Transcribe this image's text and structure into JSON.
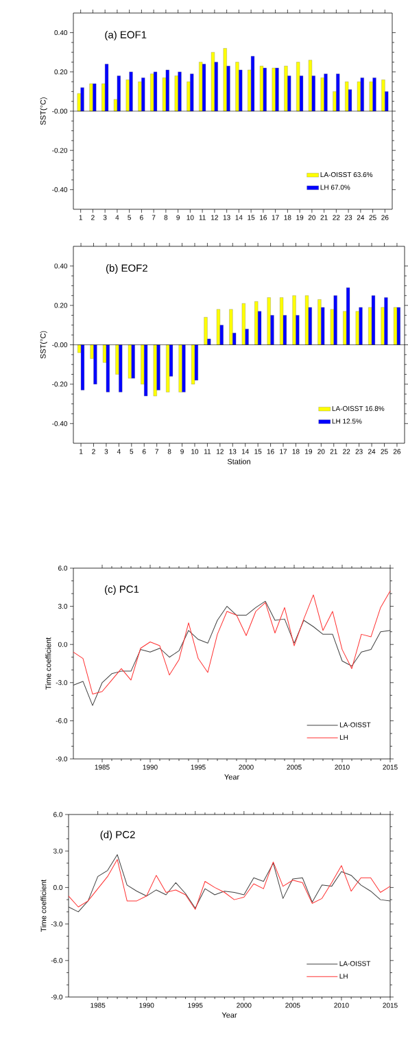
{
  "chart_data": [
    {
      "type": "bar",
      "title": "(a) EOF1",
      "ylabel": "SST(°C)",
      "categories": [
        "1",
        "2",
        "3",
        "4",
        "5",
        "6",
        "7",
        "8",
        "9",
        "10",
        "11",
        "12",
        "13",
        "14",
        "15",
        "16",
        "17",
        "18",
        "19",
        "20",
        "21",
        "22",
        "23",
        "24",
        "25",
        "26"
      ],
      "series": [
        {
          "name": "LA-OISST 63.6%",
          "color": "#ffff00",
          "values": [
            0.09,
            0.14,
            0.14,
            0.06,
            0.16,
            0.15,
            0.19,
            0.17,
            0.18,
            0.15,
            0.25,
            0.3,
            0.32,
            0.25,
            0.21,
            0.23,
            0.22,
            0.23,
            0.25,
            0.26,
            0.17,
            0.1,
            0.15,
            0.15,
            0.15,
            0.16
          ]
        },
        {
          "name": "LH 67.0%",
          "color": "#0000ff",
          "values": [
            0.12,
            0.14,
            0.24,
            0.18,
            0.2,
            0.17,
            0.2,
            0.21,
            0.2,
            0.19,
            0.24,
            0.25,
            0.23,
            0.21,
            0.28,
            0.22,
            0.22,
            0.18,
            0.18,
            0.18,
            0.19,
            0.19,
            0.11,
            0.17,
            0.17,
            0.1
          ]
        }
      ],
      "ylim": [
        -0.5,
        0.5
      ],
      "yticks": [
        {
          "value": 0.4,
          "label": "0.40"
        },
        {
          "value": 0.2,
          "label": "0.20"
        },
        {
          "value": 0,
          "label": "-0.00"
        },
        {
          "value": -0.2,
          "label": "-0.20"
        },
        {
          "value": -0.4,
          "label": "-0.40"
        }
      ],
      "legend": "bottom right"
    },
    {
      "type": "bar",
      "title": "(b) EOF2",
      "xlabel": "Station",
      "ylabel": "SST(°C)",
      "categories": [
        "1",
        "2",
        "3",
        "4",
        "5",
        "6",
        "7",
        "8",
        "9",
        "10",
        "11",
        "12",
        "13",
        "14",
        "15",
        "16",
        "17",
        "18",
        "19",
        "20",
        "21",
        "22",
        "23",
        "24",
        "25",
        "26"
      ],
      "series": [
        {
          "name": "LA-OISST 16.8%",
          "color": "#ffff00",
          "values": [
            -0.04,
            -0.07,
            -0.09,
            -0.15,
            -0.17,
            -0.2,
            -0.26,
            -0.24,
            -0.24,
            -0.2,
            0.14,
            0.18,
            0.18,
            0.21,
            0.22,
            0.24,
            0.24,
            0.25,
            0.25,
            0.23,
            0.18,
            0.17,
            0.17,
            0.19,
            0.19,
            0.19
          ]
        },
        {
          "name": "LH 12.5%",
          "color": "#0000ff",
          "values": [
            -0.23,
            -0.2,
            -0.24,
            -0.24,
            -0.17,
            -0.26,
            -0.23,
            -0.16,
            -0.24,
            -0.18,
            0.03,
            0.1,
            0.06,
            0.08,
            0.17,
            0.15,
            0.15,
            0.15,
            0.19,
            0.19,
            0.25,
            0.29,
            0.19,
            0.25,
            0.24,
            0.19
          ]
        }
      ],
      "ylim": [
        -0.5,
        0.5
      ],
      "yticks": [
        {
          "value": 0.4,
          "label": "0.40"
        },
        {
          "value": 0.2,
          "label": "0.20"
        },
        {
          "value": 0,
          "label": "-0.00"
        },
        {
          "value": -0.2,
          "label": "-0.20"
        },
        {
          "value": -0.4,
          "label": "-0.40"
        }
      ],
      "legend": "bottom right"
    },
    {
      "type": "line",
      "title": "(c) PC1",
      "xlabel": "Year",
      "ylabel": "Time coefficient",
      "x": [
        1982,
        1983,
        1984,
        1985,
        1986,
        1987,
        1988,
        1989,
        1990,
        1991,
        1992,
        1993,
        1994,
        1995,
        1996,
        1997,
        1998,
        1999,
        2000,
        2001,
        2002,
        2003,
        2004,
        2005,
        2006,
        2007,
        2008,
        2009,
        2010,
        2011,
        2012,
        2013,
        2014,
        2015
      ],
      "series": [
        {
          "name": "LA-OISST",
          "color": "#404040",
          "values": [
            -3.2,
            -2.9,
            -4.8,
            -3.0,
            -2.3,
            -2.1,
            -2.1,
            -0.4,
            -0.6,
            -0.3,
            -1.0,
            -0.5,
            1.1,
            0.4,
            0.1,
            1.9,
            3.0,
            2.3,
            2.3,
            2.9,
            3.4,
            1.9,
            2.0,
            0.1,
            1.9,
            1.4,
            0.8,
            0.8,
            -1.3,
            -1.7,
            -0.6,
            -0.4,
            1.0,
            1.1
          ]
        },
        {
          "name": "LH",
          "color": "#ff3030",
          "values": [
            -0.6,
            -1.1,
            -3.9,
            -3.7,
            -2.8,
            -1.9,
            -2.8,
            -0.3,
            0.2,
            -0.1,
            -2.4,
            -1.2,
            1.7,
            -1.1,
            -2.2,
            0.8,
            2.6,
            2.3,
            0.7,
            2.6,
            3.3,
            0.9,
            2.9,
            -0.1,
            2.0,
            3.9,
            1.1,
            2.6,
            -0.4,
            -1.9,
            0.8,
            0.6,
            2.9,
            4.2
          ]
        }
      ],
      "xlim": [
        1982,
        2015
      ],
      "xticks": [
        1985,
        1990,
        1995,
        2000,
        2005,
        2010,
        2015
      ],
      "ylim": [
        -9,
        6
      ],
      "yticks": [
        {
          "value": 6,
          "label": "6.0"
        },
        {
          "value": 3,
          "label": "3.0"
        },
        {
          "value": 0,
          "label": "0.0"
        },
        {
          "value": -3,
          "label": "-3.0"
        },
        {
          "value": -6,
          "label": "-6.0"
        },
        {
          "value": -9,
          "label": "-9.0"
        }
      ],
      "legend": "bottom right",
      "marker": "none"
    },
    {
      "type": "line",
      "title": "(d) PC2",
      "xlabel": "Year",
      "ylabel": "Time coefficient",
      "x": [
        1982,
        1983,
        1984,
        1985,
        1986,
        1987,
        1988,
        1989,
        1990,
        1991,
        1992,
        1993,
        1994,
        1995,
        1996,
        1997,
        1998,
        1999,
        2000,
        2001,
        2002,
        2003,
        2004,
        2005,
        2006,
        2007,
        2008,
        2009,
        2010,
        2011,
        2012,
        2013,
        2014,
        2015
      ],
      "series": [
        {
          "name": "LA-OISST",
          "color": "#404040",
          "values": [
            -1.6,
            -2.0,
            -1.1,
            0.9,
            1.4,
            2.7,
            0.2,
            -0.3,
            -0.7,
            -0.2,
            -0.6,
            0.4,
            -0.5,
            -1.7,
            -0.1,
            -0.6,
            -0.3,
            -0.4,
            -0.6,
            0.8,
            0.5,
            2.0,
            -0.9,
            0.7,
            0.8,
            -1.2,
            0.2,
            0.1,
            1.3,
            1.0,
            0.2,
            -0.3,
            -1.0,
            -1.1
          ]
        },
        {
          "name": "LH",
          "color": "#ff3030",
          "values": [
            -0.7,
            -1.6,
            -1.1,
            -0.1,
            0.9,
            2.3,
            -1.1,
            -1.1,
            -0.7,
            1.0,
            -0.4,
            -0.2,
            -0.6,
            -1.8,
            0.5,
            0.0,
            -0.4,
            -1.0,
            -0.8,
            0.3,
            -0.1,
            2.1,
            0.1,
            0.6,
            0.4,
            -1.3,
            -0.9,
            0.4,
            1.8,
            -0.3,
            0.8,
            0.8,
            -0.4,
            0.1
          ]
        }
      ],
      "xlim": [
        1982,
        2015
      ],
      "xticks": [
        1985,
        1990,
        1995,
        2000,
        2005,
        2010,
        2015
      ],
      "ylim": [
        -9,
        6
      ],
      "yticks": [
        {
          "value": 6,
          "label": "6.0"
        },
        {
          "value": 3,
          "label": "3.0"
        },
        {
          "value": 0,
          "label": "0.0"
        },
        {
          "value": -3,
          "label": "-3.0"
        },
        {
          "value": -6,
          "label": "-6.0"
        },
        {
          "value": -9,
          "label": "-9.0"
        }
      ],
      "legend": "bottom right",
      "marker": "none"
    }
  ]
}
